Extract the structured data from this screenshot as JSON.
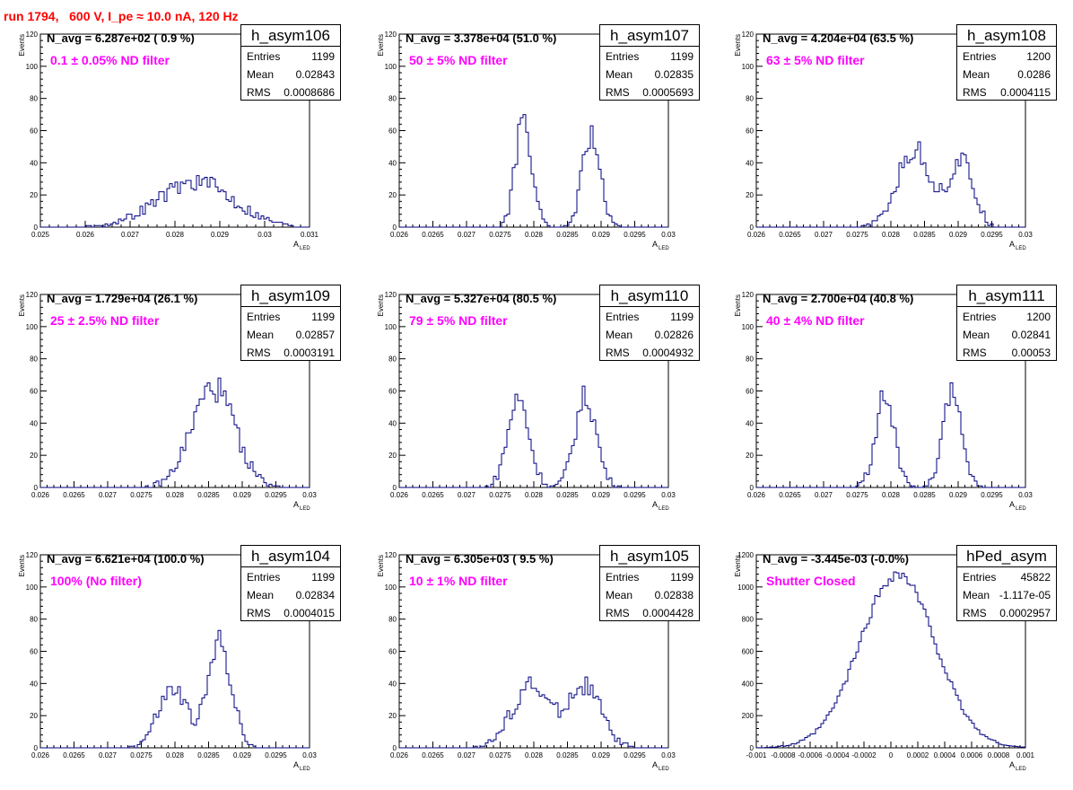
{
  "title": "run 1794,   600 V, I_pe ≈ 10.0 nA, 120 Hz",
  "y_axis_label": "Events",
  "x_axis_label": "A",
  "x_axis_sub": "LED",
  "stat_labels": {
    "entries": "Entries",
    "mean": "Mean",
    "rms": "RMS"
  },
  "colors": {
    "title": "#ff0000",
    "note": "#ff00ff",
    "hist": "#000080"
  },
  "panels": [
    {
      "hname": "h_asym106",
      "navg": "N_avg = 6.287e+02 ( 0.9 %)",
      "note": "0.1 ± 0.05% ND filter",
      "entries": "1199",
      "mean": "0.02843",
      "rms": "0.0008686"
    },
    {
      "hname": "h_asym107",
      "navg": "N_avg = 3.378e+04 (51.0 %)",
      "note": "50 ± 5% ND filter",
      "entries": "1199",
      "mean": "0.02835",
      "rms": "0.0005693"
    },
    {
      "hname": "h_asym108",
      "navg": "N_avg = 4.204e+04 (63.5 %)",
      "note": "63 ± 5% ND filter",
      "entries": "1200",
      "mean": "0.0286",
      "rms": "0.0004115"
    },
    {
      "hname": "h_asym109",
      "navg": "N_avg = 1.729e+04 (26.1 %)",
      "note": "25 ± 2.5% ND filter",
      "entries": "1199",
      "mean": "0.02857",
      "rms": "0.0003191"
    },
    {
      "hname": "h_asym110",
      "navg": "N_avg = 5.327e+04 (80.5 %)",
      "note": "79 ± 5% ND filter",
      "entries": "1199",
      "mean": "0.02826",
      "rms": "0.0004932"
    },
    {
      "hname": "h_asym111",
      "navg": "N_avg = 2.700e+04 (40.8 %)",
      "note": "40 ± 4% ND filter",
      "entries": "1200",
      "mean": "0.02841",
      "rms": "0.00053"
    },
    {
      "hname": "h_asym104",
      "navg": "N_avg = 6.621e+04 (100.0 %)",
      "note": "100% (No filter)",
      "entries": "1199",
      "mean": "0.02834",
      "rms": "0.0004015"
    },
    {
      "hname": "h_asym105",
      "navg": "N_avg = 6.305e+03 ( 9.5 %)",
      "note": "10 ± 1% ND filter",
      "entries": "1199",
      "mean": "0.02838",
      "rms": "0.0004428"
    },
    {
      "hname": "hPed_asym",
      "navg": "N_avg = -3.445e-03 (-0.0%)",
      "note": "Shutter Closed",
      "entries": "45822",
      "mean": "-1.117e-05",
      "rms": "0.0002957"
    }
  ],
  "chart_data": [
    {
      "type": "histogram",
      "title": "h_asym106",
      "xlim": [
        0.025,
        0.031
      ],
      "ylim": [
        0,
        120
      ],
      "xticks": [
        "0.025",
        "0.026",
        "0.027",
        "0.028",
        "0.029",
        "0.03",
        "0.031"
      ],
      "yticks": [
        "0",
        "20",
        "40",
        "60",
        "80",
        "100",
        "120"
      ],
      "peaks": [
        {
          "center": 0.02845,
          "sigma": 0.00085,
          "height": 28
        }
      ],
      "noise_seed": 106
    },
    {
      "type": "histogram",
      "title": "h_asym107",
      "xlim": [
        0.026,
        0.03
      ],
      "ylim": [
        0,
        120
      ],
      "xticks": [
        "0.026",
        "0.0265",
        "0.027",
        "0.0275",
        "0.028",
        "0.0285",
        "0.029",
        "0.0295",
        "0.03"
      ],
      "yticks": [
        "0",
        "20",
        "40",
        "60",
        "80",
        "100",
        "120"
      ],
      "peaks": [
        {
          "center": 0.02785,
          "sigma": 0.00012,
          "height": 68
        },
        {
          "center": 0.02885,
          "sigma": 0.00013,
          "height": 58
        }
      ],
      "noise_seed": 107
    },
    {
      "type": "histogram",
      "title": "h_asym108",
      "xlim": [
        0.026,
        0.03
      ],
      "ylim": [
        0,
        120
      ],
      "xticks": [
        "0.026",
        "0.0265",
        "0.027",
        "0.0275",
        "0.028",
        "0.0285",
        "0.029",
        "0.0295",
        "0.03"
      ],
      "yticks": [
        "0",
        "20",
        "40",
        "60",
        "80",
        "100",
        "120"
      ],
      "peaks": [
        {
          "center": 0.02835,
          "sigma": 0.00025,
          "height": 48
        },
        {
          "center": 0.02905,
          "sigma": 0.00018,
          "height": 40
        }
      ],
      "noise_seed": 108
    },
    {
      "type": "histogram",
      "title": "h_asym109",
      "xlim": [
        0.026,
        0.03
      ],
      "ylim": [
        0,
        120
      ],
      "xticks": [
        "0.026",
        "0.0265",
        "0.027",
        "0.0275",
        "0.028",
        "0.0285",
        "0.029",
        "0.0295",
        "0.03"
      ],
      "yticks": [
        "0",
        "20",
        "40",
        "60",
        "80",
        "100",
        "120"
      ],
      "peaks": [
        {
          "center": 0.02857,
          "sigma": 0.00032,
          "height": 62
        }
      ],
      "noise_seed": 109
    },
    {
      "type": "histogram",
      "title": "h_asym110",
      "xlim": [
        0.026,
        0.03
      ],
      "ylim": [
        0,
        120
      ],
      "xticks": [
        "0.026",
        "0.0265",
        "0.027",
        "0.0275",
        "0.028",
        "0.0285",
        "0.029",
        "0.0295",
        "0.03"
      ],
      "yticks": [
        "0",
        "20",
        "40",
        "60",
        "80",
        "100",
        "120"
      ],
      "peaks": [
        {
          "center": 0.02777,
          "sigma": 0.00016,
          "height": 55
        },
        {
          "center": 0.02877,
          "sigma": 0.00016,
          "height": 56
        }
      ],
      "noise_seed": 110
    },
    {
      "type": "histogram",
      "title": "h_asym111",
      "xlim": [
        0.026,
        0.03
      ],
      "ylim": [
        0,
        120
      ],
      "xticks": [
        "0.026",
        "0.0265",
        "0.027",
        "0.0275",
        "0.028",
        "0.0285",
        "0.029",
        "0.0295",
        "0.03"
      ],
      "yticks": [
        "0",
        "20",
        "40",
        "60",
        "80",
        "100",
        "120"
      ],
      "peaks": [
        {
          "center": 0.02791,
          "sigma": 0.00014,
          "height": 56
        },
        {
          "center": 0.02892,
          "sigma": 0.00014,
          "height": 58
        }
      ],
      "noise_seed": 111
    },
    {
      "type": "histogram",
      "title": "h_asym104",
      "xlim": [
        0.026,
        0.03
      ],
      "ylim": [
        0,
        120
      ],
      "xticks": [
        "0.026",
        "0.0265",
        "0.027",
        "0.0275",
        "0.028",
        "0.0285",
        "0.029",
        "0.0295",
        "0.03"
      ],
      "yticks": [
        "0",
        "20",
        "40",
        "60",
        "80",
        "100",
        "120"
      ],
      "peaks": [
        {
          "center": 0.02797,
          "sigma": 0.00022,
          "height": 36
        },
        {
          "center": 0.02867,
          "sigma": 0.00017,
          "height": 66
        }
      ],
      "noise_seed": 104
    },
    {
      "type": "histogram",
      "title": "h_asym105",
      "xlim": [
        0.026,
        0.03
      ],
      "ylim": [
        0,
        120
      ],
      "xticks": [
        "0.026",
        "0.0265",
        "0.027",
        "0.0275",
        "0.028",
        "0.0285",
        "0.029",
        "0.0295",
        "0.03"
      ],
      "yticks": [
        "0",
        "20",
        "40",
        "60",
        "80",
        "100",
        "120"
      ],
      "peaks": [
        {
          "center": 0.02795,
          "sigma": 0.00028,
          "height": 38
        },
        {
          "center": 0.02875,
          "sigma": 0.00025,
          "height": 38
        }
      ],
      "noise_seed": 105
    },
    {
      "type": "histogram",
      "title": "hPed_asym",
      "xlim": [
        -0.001,
        0.001
      ],
      "ylim": [
        0,
        1200
      ],
      "xticks": [
        "-0.001",
        "-0.0008",
        "-0.0006",
        "-0.0004",
        "-0.0002",
        "0",
        "0.0002",
        "0.0004",
        "0.0006",
        "0.0008",
        "0.001"
      ],
      "yticks": [
        "0",
        "200",
        "400",
        "600",
        "800",
        "1000",
        "1200"
      ],
      "peaks": [
        {
          "center": 5e-05,
          "sigma": 0.00028,
          "height": 1080
        }
      ],
      "noise_seed": 99
    }
  ]
}
